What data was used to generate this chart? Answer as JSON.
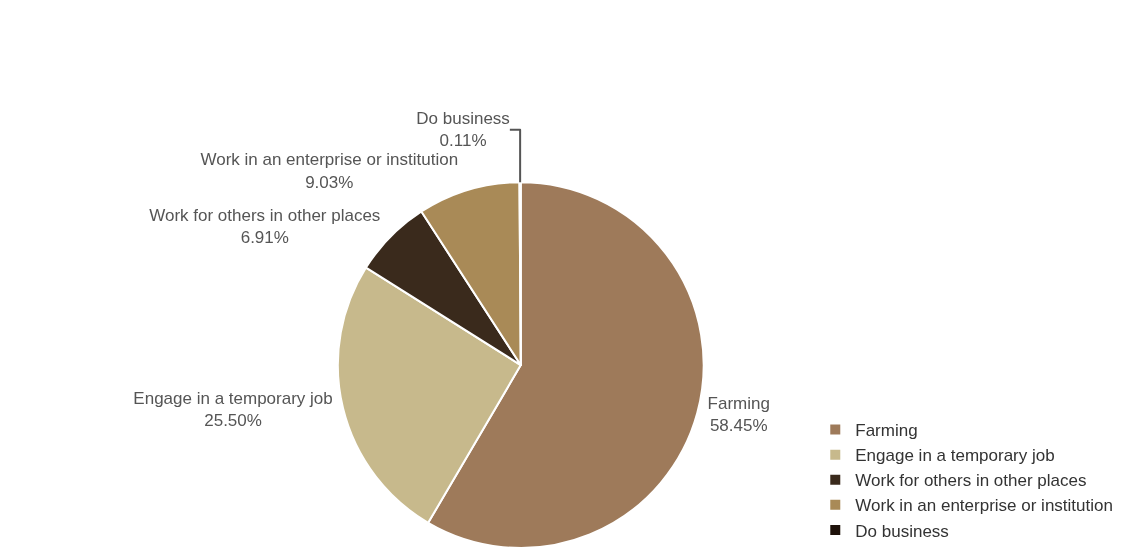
{
  "chart_data": {
    "type": "pie",
    "categories": [
      "Farming",
      "Engage in a temporary job",
      "Work for others in other places",
      "Work in an enterprise or institution",
      "Do business"
    ],
    "values": [
      58.45,
      25.5,
      6.91,
      9.03,
      0.11
    ],
    "value_labels": [
      "58.45%",
      "25.50%",
      "6.91%",
      "9.03%",
      "0.11%"
    ],
    "colors": [
      "#9e7a5a",
      "#c7b98c",
      "#3a2a1c",
      "#a98a57",
      "#1e120a"
    ],
    "legend": "bottom right"
  }
}
